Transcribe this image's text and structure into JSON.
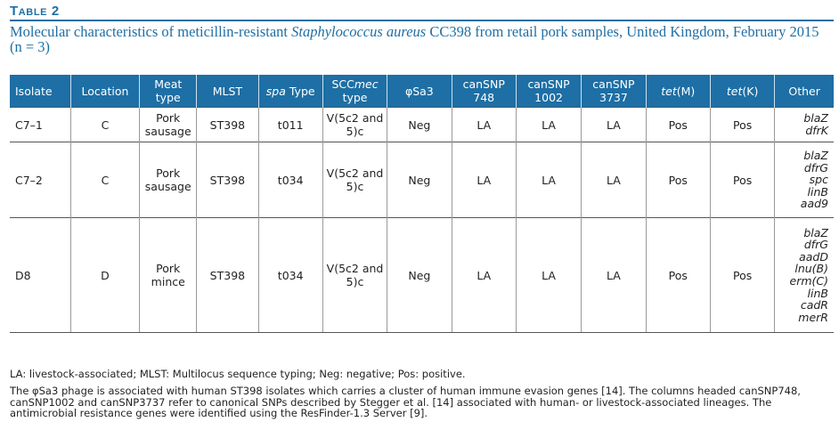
{
  "table_label": "Table 2",
  "caption": {
    "before": "Molecular characteristics of meticillin-resistant ",
    "italic": "Staphylococcus aureus",
    "after": " CC398 from retail pork samples, United Kingdom, February 2015 (n = 3)"
  },
  "headers": {
    "isolate": "Isolate",
    "location": "Location",
    "meat_type": "Meat type",
    "mlst": "MLST",
    "spa_italic": "spa",
    "spa_rest": " Type",
    "scc_pre": "SCC",
    "scc_italic": "mec",
    "scc_post": " type",
    "phisa3": "φSa3",
    "cansnp748": "canSNP 748",
    "cansnp1002": "canSNP 1002",
    "cansnp3737": "canSNP 3737",
    "tetm_italic": "tet",
    "tetm_rest": "(M)",
    "tetk_italic": "tet",
    "tetk_rest": "(K)",
    "other": "Other"
  },
  "rows": [
    {
      "isolate": "C7–1",
      "location": "C",
      "meat_type": "Pork sausage",
      "mlst": "ST398",
      "spa_type": "t011",
      "scc_type": "V(5c2 and 5)c",
      "phisa3": "Neg",
      "cansnp748": "LA",
      "cansnp1002": "LA",
      "cansnp3737": "LA",
      "tetm": "Pos",
      "tetk": "Pos",
      "other": [
        "blaZ",
        "dfrK"
      ]
    },
    {
      "isolate": "C7–2",
      "location": "C",
      "meat_type": "Pork sausage",
      "mlst": "ST398",
      "spa_type": "t034",
      "scc_type": "V(5c2 and 5)c",
      "phisa3": "Neg",
      "cansnp748": "LA",
      "cansnp1002": "LA",
      "cansnp3737": "LA",
      "tetm": "Pos",
      "tetk": "Pos",
      "other": [
        "blaZ",
        "dfrG",
        "spc",
        "linB",
        "aad9"
      ]
    },
    {
      "isolate": "D8",
      "location": "D",
      "meat_type": "Pork mince",
      "mlst": "ST398",
      "spa_type": "t034",
      "scc_type": "V(5c2 and 5)c",
      "phisa3": "Neg",
      "cansnp748": "LA",
      "cansnp1002": "LA",
      "cansnp3737": "LA",
      "tetm": "Pos",
      "tetk": "Pos",
      "other": [
        "blaZ",
        "dfrG",
        "aadD",
        "lnu(B)",
        "erm(C)",
        "linB",
        "cadR",
        "merR"
      ]
    }
  ],
  "footnotes": {
    "abbreviations": "LA: livestock-associated; MLST: Multilocus sequence typing; Neg: negative; Pos: positive.",
    "note": "The φSa3 phage is associated with human ST398 isolates which carries a cluster of human immune evasion genes [14]. The columns headed canSNP748, canSNP1002 and canSNP3737 refer to canonical SNPs described by Stegger et al. [14] associated with human- or livestock-associated lineages. The antimicrobial resistance genes were identified using the ResFinder-1.3 Server [9]."
  },
  "colors": {
    "accent": "#1d6fa5",
    "header_text": "#ffffff",
    "body_text": "#231f20"
  }
}
